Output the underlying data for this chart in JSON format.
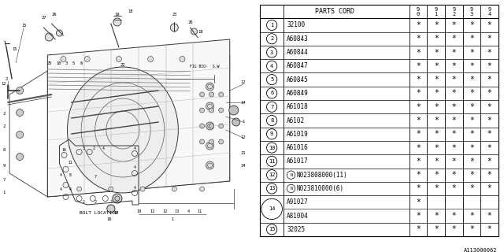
{
  "title": "A113000062",
  "bg_color": "#ffffff",
  "col_header": "PARTS CORD",
  "year_cols": [
    "9\n0",
    "9\n1",
    "9\n2",
    "9\n3",
    "9\n4"
  ],
  "rows": [
    {
      "num": "1",
      "part": "32100",
      "stars": [
        1,
        1,
        1,
        1,
        1
      ]
    },
    {
      "num": "2",
      "part": "A60843",
      "stars": [
        1,
        1,
        1,
        1,
        1
      ]
    },
    {
      "num": "3",
      "part": "A60844",
      "stars": [
        1,
        1,
        1,
        1,
        1
      ]
    },
    {
      "num": "4",
      "part": "A60847",
      "stars": [
        1,
        1,
        1,
        1,
        1
      ]
    },
    {
      "num": "5",
      "part": "A60845",
      "stars": [
        1,
        1,
        1,
        1,
        1
      ]
    },
    {
      "num": "6",
      "part": "A60849",
      "stars": [
        1,
        1,
        1,
        1,
        1
      ]
    },
    {
      "num": "7",
      "part": "A61018",
      "stars": [
        1,
        1,
        1,
        1,
        1
      ]
    },
    {
      "num": "8",
      "part": "A6102",
      "stars": [
        1,
        1,
        1,
        1,
        1
      ]
    },
    {
      "num": "9",
      "part": "A61019",
      "stars": [
        1,
        1,
        1,
        1,
        1
      ]
    },
    {
      "num": "10",
      "part": "A61016",
      "stars": [
        1,
        1,
        1,
        1,
        1
      ]
    },
    {
      "num": "11",
      "part": "A61017",
      "stars": [
        1,
        1,
        1,
        1,
        1
      ]
    },
    {
      "num": "12",
      "part": "N023808000(11)",
      "stars": [
        1,
        1,
        1,
        1,
        1
      ],
      "N": true
    },
    {
      "num": "13",
      "part": "N023810000(6)",
      "stars": [
        1,
        1,
        1,
        1,
        1
      ],
      "N": true
    },
    {
      "num": "14",
      "part_a": "A91027",
      "stars_a": [
        1,
        0,
        0,
        0,
        0
      ],
      "part_b": "A81004",
      "stars_b": [
        1,
        1,
        1,
        1,
        1
      ],
      "pair": true
    },
    {
      "num": "15",
      "part": "32025",
      "stars": [
        1,
        1,
        1,
        1,
        1
      ]
    }
  ],
  "bolt_location_label": "BOLT LOCATION",
  "drawing_color": "#555555",
  "line_color": "#333333"
}
